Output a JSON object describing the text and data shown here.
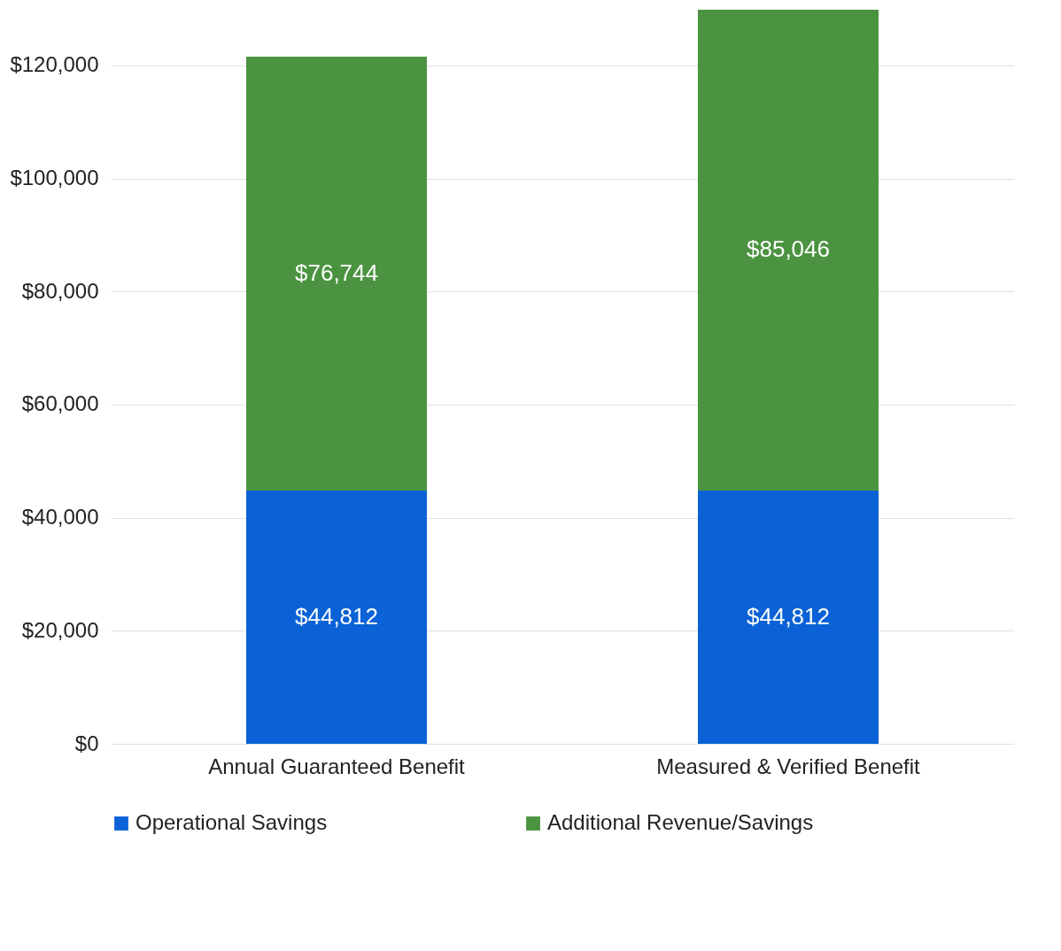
{
  "chart_data": {
    "type": "bar",
    "stacked": true,
    "categories": [
      "Annual Guaranteed Benefit",
      "Measured & Verified Benefit"
    ],
    "series": [
      {
        "name": "Operational Savings",
        "color": "#0a62d6",
        "values": [
          44812,
          44812
        ]
      },
      {
        "name": "Additional Revenue/Savings",
        "color": "#4b9340",
        "values": [
          76744,
          85046
        ]
      }
    ],
    "ylim": [
      0,
      130000
    ],
    "yticks": [
      {
        "value": 0,
        "label": "$0"
      },
      {
        "value": 20000,
        "label": "$20,000"
      },
      {
        "value": 40000,
        "label": "$40,000"
      },
      {
        "value": 60000,
        "label": "$60,000"
      },
      {
        "value": 80000,
        "label": "$80,000"
      },
      {
        "value": 100000,
        "label": "$100,000"
      },
      {
        "value": 120000,
        "label": "$120,000"
      }
    ],
    "value_labels": [
      [
        "$44,812",
        "$44,812"
      ],
      [
        "$76,744",
        "$85,046"
      ]
    ],
    "grid": "y",
    "legend": "bottom"
  }
}
